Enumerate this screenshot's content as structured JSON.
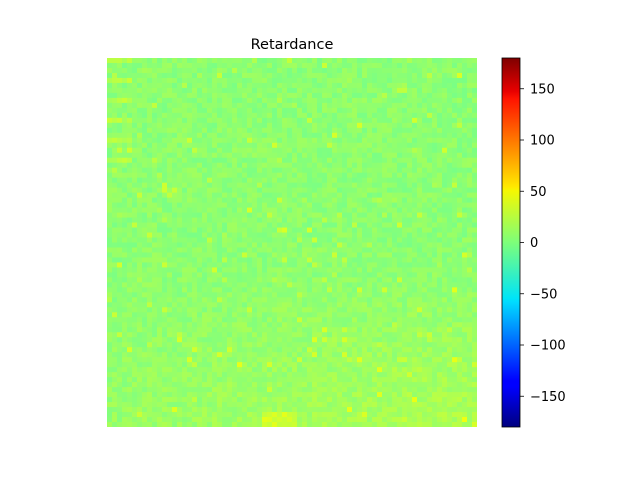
{
  "chart_data": {
    "type": "heatmap",
    "title": "Retardance",
    "colormap": "jet",
    "colorbar": {
      "range": [
        -180,
        180
      ],
      "ticks": [
        -150,
        -100,
        -50,
        0,
        50,
        100,
        150
      ],
      "tick_labels": [
        "−150",
        "−100",
        "−50",
        "0",
        "50",
        "100",
        "150"
      ]
    },
    "axes_visible": false,
    "value_summary": {
      "dominant_value": 5,
      "typical_range": [
        0,
        25
      ],
      "max_observed": 40
    }
  }
}
